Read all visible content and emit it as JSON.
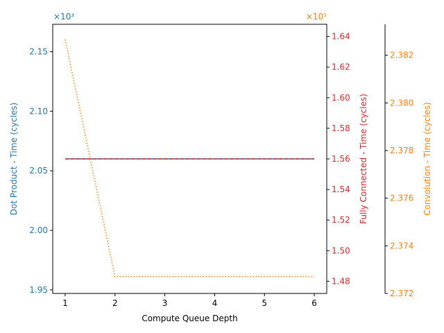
{
  "chart_data": {
    "type": "line",
    "xlabel": "Compute Queue Depth",
    "x": [
      1,
      2,
      3,
      4,
      5,
      6
    ],
    "x_ticks": [
      "1",
      "2",
      "3",
      "4",
      "5",
      "6"
    ],
    "xlim": [
      0.75,
      6.25
    ],
    "axes": [
      {
        "id": "dot",
        "label": "Dot Product - Time (cycles)",
        "color": "#1f77b4",
        "multiplier": "×10³",
        "ylim": [
          1.947,
          2.173
        ],
        "ticks": [
          1.95,
          2.0,
          2.05,
          2.1,
          2.15
        ],
        "tick_labels": [
          "1.95",
          "2.00",
          "2.05",
          "2.10",
          "2.15"
        ]
      },
      {
        "id": "fc",
        "label": "Fully Connected - Time (cycles)",
        "color": "#d62728",
        "multiplier": "×10⁵",
        "ylim": [
          1.472,
          1.648
        ],
        "ticks": [
          1.48,
          1.5,
          1.52,
          1.54,
          1.56,
          1.58,
          1.6,
          1.62,
          1.64
        ],
        "tick_labels": [
          "1.48",
          "1.50",
          "1.52",
          "1.54",
          "1.56",
          "1.58",
          "1.60",
          "1.62",
          "1.64"
        ]
      },
      {
        "id": "conv",
        "label": "Convolution - Time (cycles)",
        "color": "#ff7f0e",
        "ylim": [
          2.372,
          2.3833
        ],
        "ticks": [
          2.372,
          2.374,
          2.376,
          2.378,
          2.38,
          2.382
        ],
        "tick_labels": [
          "2.372",
          "2.374",
          "2.376",
          "2.378",
          "2.380",
          "2.382"
        ]
      }
    ],
    "series": [
      {
        "axis": "dot",
        "color": "#1f77b4",
        "style": "solid",
        "values": [
          2.06,
          2.06,
          2.06,
          2.06,
          2.06,
          2.06
        ]
      },
      {
        "axis": "fc",
        "color": "#d62728",
        "style": "dashed",
        "values": [
          1.56,
          1.56,
          1.56,
          1.56,
          1.56,
          1.56
        ]
      },
      {
        "axis": "fc",
        "color": "#ff7f0e",
        "style": "dotted",
        "values": [
          1.638,
          1.483,
          1.483,
          1.483,
          1.483,
          1.483
        ]
      }
    ]
  }
}
